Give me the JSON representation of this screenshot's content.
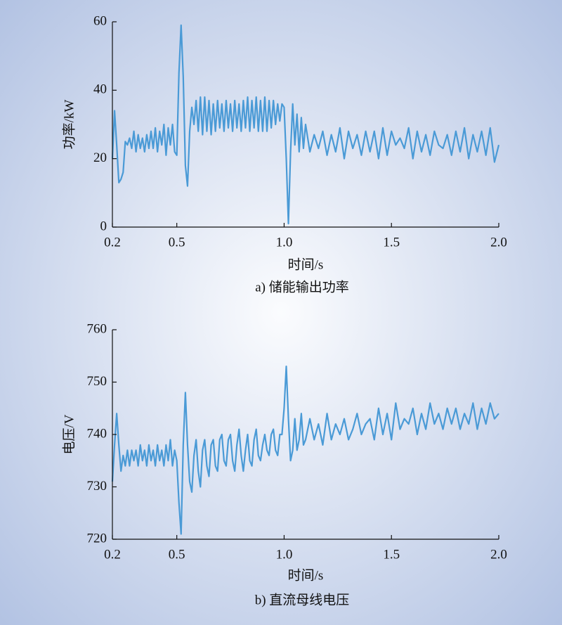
{
  "chart_data": [
    {
      "type": "line",
      "ylabel": "功率/kW",
      "xlabel": "时间/s",
      "caption": "a) 储能输出功率",
      "x": [
        0.2,
        0.21,
        0.22,
        0.23,
        0.24,
        0.25,
        0.26,
        0.27,
        0.28,
        0.29,
        0.3,
        0.31,
        0.32,
        0.33,
        0.34,
        0.35,
        0.36,
        0.37,
        0.38,
        0.39,
        0.4,
        0.41,
        0.42,
        0.43,
        0.44,
        0.45,
        0.46,
        0.47,
        0.48,
        0.49,
        0.5,
        0.51,
        0.52,
        0.53,
        0.54,
        0.55,
        0.56,
        0.57,
        0.58,
        0.59,
        0.6,
        0.61,
        0.62,
        0.63,
        0.64,
        0.65,
        0.66,
        0.67,
        0.68,
        0.69,
        0.7,
        0.71,
        0.72,
        0.73,
        0.74,
        0.75,
        0.76,
        0.77,
        0.78,
        0.79,
        0.8,
        0.81,
        0.82,
        0.83,
        0.84,
        0.85,
        0.86,
        0.87,
        0.88,
        0.89,
        0.9,
        0.91,
        0.92,
        0.93,
        0.94,
        0.95,
        0.96,
        0.97,
        0.98,
        0.99,
        1.0,
        1.01,
        1.02,
        1.03,
        1.04,
        1.05,
        1.06,
        1.07,
        1.08,
        1.09,
        1.1,
        1.12,
        1.14,
        1.16,
        1.18,
        1.2,
        1.22,
        1.24,
        1.26,
        1.28,
        1.3,
        1.32,
        1.34,
        1.36,
        1.38,
        1.4,
        1.42,
        1.44,
        1.46,
        1.48,
        1.5,
        1.52,
        1.54,
        1.56,
        1.58,
        1.6,
        1.62,
        1.64,
        1.66,
        1.68,
        1.7,
        1.72,
        1.74,
        1.76,
        1.78,
        1.8,
        1.82,
        1.84,
        1.86,
        1.88,
        1.9,
        1.92,
        1.94,
        1.96,
        1.98,
        2.0
      ],
      "series": [
        {
          "color": "#4a9ad6",
          "values": [
            20,
            34,
            24,
            13,
            14,
            16,
            25,
            24,
            26,
            23,
            28,
            22,
            27,
            23,
            26,
            22,
            27,
            23,
            28,
            23,
            29,
            22,
            28,
            24,
            30,
            21,
            29,
            24,
            30,
            22,
            21,
            45,
            59,
            44,
            18,
            12,
            28,
            35,
            30,
            37,
            28,
            38,
            27,
            38,
            28,
            37,
            27,
            36,
            28,
            37,
            29,
            36,
            28,
            37,
            29,
            36,
            28,
            37,
            29,
            36,
            28,
            37,
            29,
            38,
            28,
            37,
            29,
            38,
            28,
            37,
            28,
            38,
            28,
            37,
            29,
            37,
            30,
            36,
            31,
            36,
            35,
            20,
            1,
            22,
            36,
            24,
            33,
            22,
            32,
            23,
            30,
            22,
            27,
            23,
            28,
            21,
            27,
            22,
            29,
            20,
            28,
            23,
            27,
            21,
            28,
            22,
            28,
            20,
            29,
            21,
            28,
            24,
            26,
            23,
            29,
            20,
            28,
            22,
            27,
            21,
            28,
            24,
            23,
            27,
            21,
            28,
            22,
            29,
            20,
            27,
            22,
            28,
            21,
            29,
            19,
            24
          ]
        }
      ],
      "xlim": [
        0.2,
        2.0
      ],
      "xticks": [
        0.2,
        0.5,
        {
          "value": 1,
          "label": "1.0"
        },
        1.5,
        {
          "value": 2,
          "label": "2.0"
        }
      ],
      "ylim": [
        0,
        60
      ],
      "yticks": [
        0,
        20,
        40,
        60
      ]
    },
    {
      "type": "line",
      "ylabel": "电压/V",
      "xlabel": "时间/s",
      "caption": "b) 直流母线电压",
      "x": [
        0.2,
        0.21,
        0.22,
        0.23,
        0.24,
        0.25,
        0.26,
        0.27,
        0.28,
        0.29,
        0.3,
        0.31,
        0.32,
        0.33,
        0.34,
        0.35,
        0.36,
        0.37,
        0.38,
        0.39,
        0.4,
        0.41,
        0.42,
        0.43,
        0.44,
        0.45,
        0.46,
        0.47,
        0.48,
        0.49,
        0.5,
        0.51,
        0.52,
        0.53,
        0.54,
        0.55,
        0.56,
        0.57,
        0.58,
        0.59,
        0.6,
        0.61,
        0.62,
        0.63,
        0.64,
        0.65,
        0.66,
        0.67,
        0.68,
        0.69,
        0.7,
        0.71,
        0.72,
        0.73,
        0.74,
        0.75,
        0.76,
        0.77,
        0.78,
        0.79,
        0.8,
        0.81,
        0.82,
        0.83,
        0.84,
        0.85,
        0.86,
        0.87,
        0.88,
        0.89,
        0.9,
        0.91,
        0.92,
        0.93,
        0.94,
        0.95,
        0.96,
        0.97,
        0.98,
        0.99,
        1.0,
        1.01,
        1.02,
        1.03,
        1.04,
        1.05,
        1.06,
        1.07,
        1.08,
        1.09,
        1.1,
        1.12,
        1.14,
        1.16,
        1.18,
        1.2,
        1.22,
        1.24,
        1.26,
        1.28,
        1.3,
        1.32,
        1.34,
        1.36,
        1.38,
        1.4,
        1.42,
        1.44,
        1.46,
        1.48,
        1.5,
        1.52,
        1.54,
        1.56,
        1.58,
        1.6,
        1.62,
        1.64,
        1.66,
        1.68,
        1.7,
        1.72,
        1.74,
        1.76,
        1.78,
        1.8,
        1.82,
        1.84,
        1.86,
        1.88,
        1.9,
        1.92,
        1.94,
        1.96,
        1.98,
        2.0
      ],
      "series": [
        {
          "color": "#4a9ad6",
          "values": [
            731,
            738,
            744,
            738,
            733,
            736,
            734,
            737,
            734,
            737,
            735,
            737,
            734,
            738,
            735,
            737,
            734,
            738,
            735,
            737,
            734,
            738,
            735,
            737,
            734,
            738,
            735,
            739,
            734,
            737,
            735,
            727,
            721,
            738,
            748,
            738,
            731,
            729,
            736,
            739,
            733,
            730,
            737,
            739,
            734,
            732,
            738,
            739,
            734,
            733,
            739,
            740,
            735,
            734,
            739,
            740,
            735,
            733,
            738,
            741,
            736,
            733,
            737,
            740,
            735,
            734,
            739,
            741,
            736,
            735,
            738,
            740,
            737,
            736,
            740,
            741,
            737,
            736,
            740,
            740,
            745,
            753,
            743,
            735,
            737,
            743,
            737,
            739,
            744,
            738,
            739,
            743,
            739,
            742,
            738,
            744,
            739,
            742,
            740,
            743,
            739,
            741,
            744,
            740,
            742,
            743,
            739,
            745,
            740,
            744,
            739,
            746,
            741,
            743,
            742,
            745,
            740,
            744,
            741,
            746,
            742,
            744,
            741,
            745,
            742,
            745,
            741,
            744,
            742,
            746,
            741,
            745,
            742,
            746,
            743,
            744
          ]
        }
      ],
      "xlim": [
        0.2,
        2.0
      ],
      "xticks": [
        0.2,
        0.5,
        {
          "value": 1,
          "label": "1.0"
        },
        1.5,
        {
          "value": 2,
          "label": "2.0"
        }
      ],
      "ylim": [
        720,
        760
      ],
      "yticks": [
        720,
        730,
        740,
        750,
        760
      ]
    }
  ]
}
